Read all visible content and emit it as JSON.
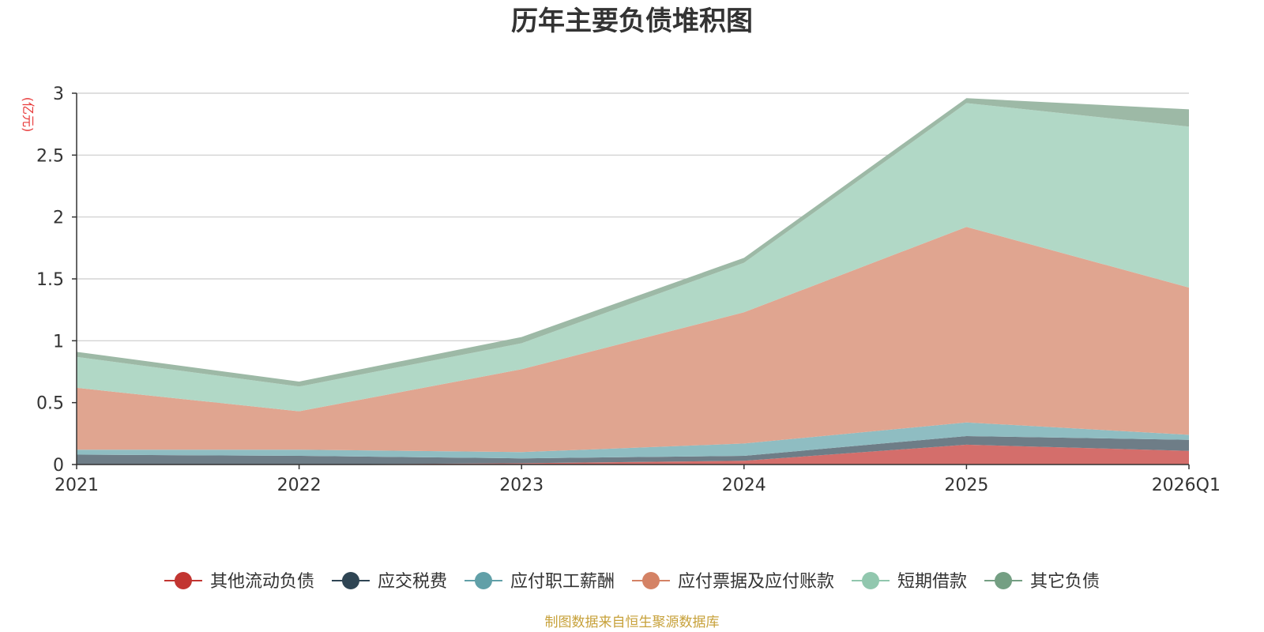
{
  "chart_data": {
    "type": "area",
    "stacked": true,
    "title": "历年主要负债堆积图",
    "unit_label": "(亿元)",
    "source": "制图数据来自恒生聚源数据库",
    "categories": [
      "2021",
      "2022",
      "2023",
      "2024",
      "2025",
      "2026Q1"
    ],
    "ylim": [
      0,
      3
    ],
    "yticks": [
      0,
      0.5,
      1,
      1.5,
      2,
      2.5,
      3
    ],
    "ytick_labels": [
      "0",
      "0.5",
      "1",
      "1.5",
      "2",
      "2.5",
      "3"
    ],
    "grid": true,
    "legend_position": "bottom",
    "series": [
      {
        "name": "其他流动负债",
        "color": "#c23531",
        "area_color": "#d46e6b",
        "values": [
          0.0,
          0.0,
          0.01,
          0.03,
          0.16,
          0.11
        ]
      },
      {
        "name": "应交税费",
        "color": "#2f4554",
        "area_color": "#6e7d87",
        "values": [
          0.08,
          0.07,
          0.04,
          0.04,
          0.07,
          0.09
        ]
      },
      {
        "name": "应付职工薪酬",
        "color": "#61a0a8",
        "area_color": "#8fbdc2",
        "values": [
          0.04,
          0.05,
          0.05,
          0.1,
          0.11,
          0.04
        ]
      },
      {
        "name": "应付票据及应付账款",
        "color": "#d48265",
        "area_color": "#e0a590",
        "values": [
          0.5,
          0.31,
          0.67,
          1.06,
          1.58,
          1.19
        ]
      },
      {
        "name": "短期借款",
        "color": "#91c7ae",
        "area_color": "#b1d8c6",
        "values": [
          0.25,
          0.2,
          0.21,
          0.4,
          1.0,
          1.3
        ]
      },
      {
        "name": "其它负债",
        "color": "#749f83",
        "area_color": "#9db9a6",
        "values": [
          0.04,
          0.04,
          0.05,
          0.04,
          0.04,
          0.14
        ]
      }
    ]
  }
}
